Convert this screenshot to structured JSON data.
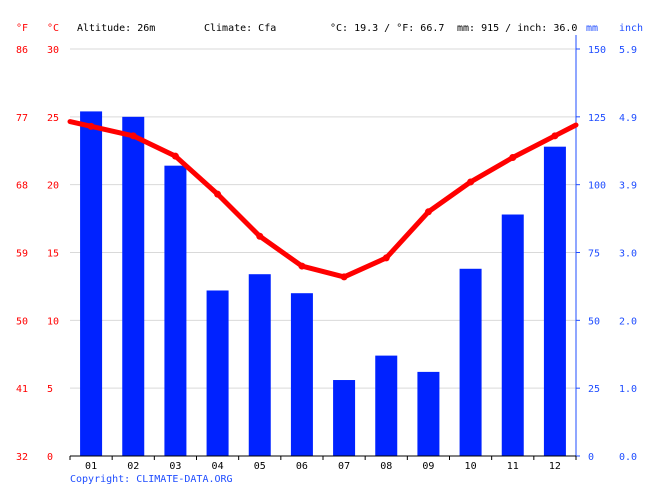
{
  "header": {
    "unit_f": "°F",
    "unit_c": "°C",
    "altitude": "Altitude: 26m",
    "climate": "Climate: Cfa",
    "temp_avg": "°C: 19.3 / °F: 66.7",
    "precip_total": "mm: 915 / inch: 36.0",
    "unit_mm": "mm",
    "unit_inch": "inch"
  },
  "axes": {
    "f_ticks": [
      "32",
      "41",
      "50",
      "59",
      "68",
      "77",
      "86"
    ],
    "c_ticks": [
      "0",
      "5",
      "10",
      "15",
      "20",
      "25",
      "30"
    ],
    "mm_ticks": [
      "0",
      "25",
      "50",
      "75",
      "100",
      "125",
      "150"
    ],
    "inch_ticks": [
      "0.0",
      "1.0",
      "2.0",
      "3.0",
      "3.9",
      "4.9",
      "5.9"
    ]
  },
  "footer": {
    "copyright": "Copyright: CLIMATE-DATA.ORG"
  },
  "colors": {
    "temperature": "#ff0000",
    "precipitation": "#0022ff",
    "tick_blue": "#1f4dff",
    "grid": "#d9d9d9"
  },
  "chart_data": {
    "type": "bar",
    "categories": [
      "01",
      "02",
      "03",
      "04",
      "05",
      "06",
      "07",
      "08",
      "09",
      "10",
      "11",
      "12"
    ],
    "series": [
      {
        "type": "bar",
        "axis": "mm",
        "values": [
          127,
          125,
          107,
          61,
          67,
          60,
          28,
          37,
          31,
          69,
          89,
          114
        ]
      },
      {
        "type": "line",
        "axis": "°C",
        "values": [
          24.3,
          23.6,
          22.1,
          19.3,
          16.2,
          14.0,
          13.2,
          14.6,
          18.0,
          20.2,
          22.0,
          23.6
        ]
      }
    ],
    "ylim_temp_c": [
      0,
      30
    ],
    "ylim_precip_mm": [
      0,
      150
    ],
    "grid": true
  }
}
